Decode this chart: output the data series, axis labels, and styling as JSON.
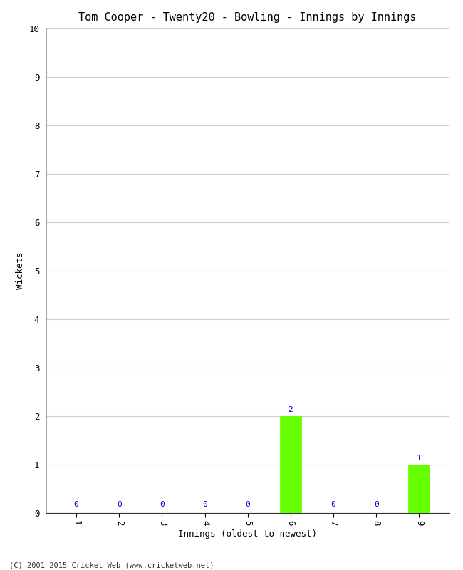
{
  "title": "Tom Cooper - Twenty20 - Bowling - Innings by Innings",
  "xlabel": "Innings (oldest to newest)",
  "ylabel": "Wickets",
  "categories": [
    "1",
    "2",
    "3",
    "4",
    "5",
    "6",
    "7",
    "8",
    "9"
  ],
  "values": [
    0,
    0,
    0,
    0,
    0,
    2,
    0,
    0,
    1
  ],
  "bar_color_green": "#66ff00",
  "label_color_blue": "#0000cc",
  "ylim": [
    0,
    10
  ],
  "yticks": [
    0,
    1,
    2,
    3,
    4,
    5,
    6,
    7,
    8,
    9,
    10
  ],
  "background_color": "#ffffff",
  "grid_color": "#cccccc",
  "footer": "(C) 2001-2015 Cricket Web (www.cricketweb.net)",
  "title_fontsize": 11,
  "axis_label_fontsize": 9,
  "tick_fontsize": 9,
  "annotation_fontsize": 8
}
